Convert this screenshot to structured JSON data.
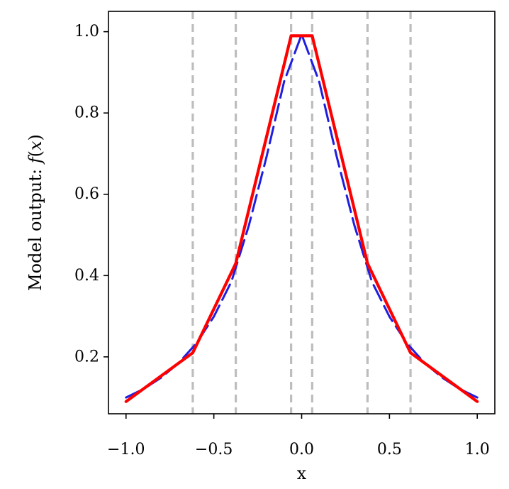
{
  "chart_data": {
    "type": "line",
    "title": "",
    "xlabel": "x",
    "ylabel": {
      "prefix": "Model output: ",
      "fx": "f",
      "open": "(",
      "var": "x",
      "close": ")"
    },
    "xlim": [
      -1.1,
      1.1
    ],
    "ylim": [
      0.06,
      1.05
    ],
    "xticks": [
      -1.0,
      -0.5,
      0.0,
      0.5,
      1.0
    ],
    "xtick_labels": [
      "−1.0",
      "−0.5",
      "0.0",
      "0.5",
      "1.0"
    ],
    "yticks": [
      0.2,
      0.4,
      0.6,
      0.8,
      1.0
    ],
    "ytick_labels": [
      "0.2",
      "0.4",
      "0.6",
      "0.8",
      "1.0"
    ],
    "grid": false,
    "vertical_lines": {
      "x": [
        -0.62,
        -0.375,
        -0.06,
        0.06,
        0.375,
        0.62
      ],
      "color": "#bdbdbd",
      "style": "dashed"
    },
    "series": [
      {
        "style": "dashed",
        "color": "#1f1fe0",
        "x": [
          -1.0,
          -0.9,
          -0.8,
          -0.7,
          -0.6,
          -0.5,
          -0.4,
          -0.3,
          -0.2,
          -0.1,
          0.0,
          0.1,
          0.2,
          0.3,
          0.4,
          0.5,
          0.6,
          0.7,
          0.8,
          0.9,
          1.0
        ],
        "y": [
          0.1,
          0.121,
          0.149,
          0.185,
          0.233,
          0.299,
          0.385,
          0.524,
          0.692,
          0.877,
          0.993,
          0.877,
          0.692,
          0.524,
          0.385,
          0.299,
          0.233,
          0.185,
          0.149,
          0.121,
          0.1
        ]
      },
      {
        "style": "solid",
        "color": "#ff0000",
        "x": [
          -1.0,
          -0.62,
          -0.375,
          -0.06,
          0.06,
          0.375,
          0.62,
          1.0
        ],
        "y": [
          0.09,
          0.21,
          0.43,
          0.99,
          0.99,
          0.43,
          0.21,
          0.09
        ]
      }
    ]
  }
}
